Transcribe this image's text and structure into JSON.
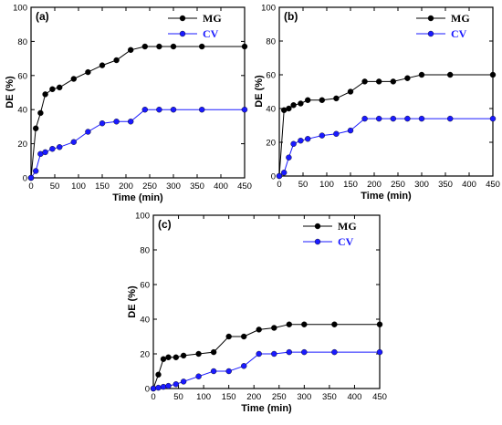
{
  "colors": {
    "MG": "#000000",
    "CV": "#1a1aff"
  },
  "chart_data": [
    {
      "type": "line",
      "panel_label": "(a)",
      "xlabel": "Time (min)",
      "ylabel": "DE (%)",
      "xlim": [
        0,
        450
      ],
      "ylim": [
        0,
        100
      ],
      "xticks": [
        0,
        50,
        100,
        150,
        200,
        250,
        300,
        350,
        400,
        450
      ],
      "yticks": [
        0,
        20,
        40,
        60,
        80,
        100
      ],
      "legend_position": "top-right",
      "series": [
        {
          "name": "MG",
          "points": [
            [
              0,
              0
            ],
            [
              10,
              29
            ],
            [
              20,
              38
            ],
            [
              30,
              49
            ],
            [
              45,
              52
            ],
            [
              60,
              53
            ],
            [
              90,
              58
            ],
            [
              120,
              62
            ],
            [
              150,
              66
            ],
            [
              180,
              69
            ],
            [
              210,
              75
            ],
            [
              240,
              77
            ],
            [
              270,
              77
            ],
            [
              300,
              77
            ],
            [
              360,
              77
            ],
            [
              450,
              77
            ]
          ]
        },
        {
          "name": "CV",
          "points": [
            [
              0,
              0
            ],
            [
              10,
              4
            ],
            [
              20,
              14
            ],
            [
              30,
              15
            ],
            [
              45,
              17
            ],
            [
              60,
              18
            ],
            [
              90,
              21
            ],
            [
              120,
              27
            ],
            [
              150,
              32
            ],
            [
              180,
              33
            ],
            [
              210,
              33
            ],
            [
              240,
              40
            ],
            [
              270,
              40
            ],
            [
              300,
              40
            ],
            [
              360,
              40
            ],
            [
              450,
              40
            ]
          ]
        }
      ]
    },
    {
      "type": "line",
      "panel_label": "(b)",
      "xlabel": "Time (min)",
      "ylabel": "DE (%)",
      "xlim": [
        0,
        450
      ],
      "ylim": [
        0,
        100
      ],
      "xticks": [
        0,
        50,
        100,
        150,
        200,
        250,
        300,
        350,
        400,
        450
      ],
      "yticks": [
        0,
        20,
        40,
        60,
        80,
        100
      ],
      "legend_position": "top-right",
      "series": [
        {
          "name": "MG",
          "points": [
            [
              0,
              0
            ],
            [
              10,
              39
            ],
            [
              20,
              40
            ],
            [
              30,
              42
            ],
            [
              45,
              43
            ],
            [
              60,
              45
            ],
            [
              90,
              45
            ],
            [
              120,
              46
            ],
            [
              150,
              50
            ],
            [
              180,
              56
            ],
            [
              210,
              56
            ],
            [
              240,
              56
            ],
            [
              270,
              58
            ],
            [
              300,
              60
            ],
            [
              360,
              60
            ],
            [
              450,
              60
            ]
          ]
        },
        {
          "name": "CV",
          "points": [
            [
              0,
              0
            ],
            [
              10,
              2
            ],
            [
              20,
              11
            ],
            [
              30,
              19
            ],
            [
              45,
              21
            ],
            [
              60,
              22
            ],
            [
              90,
              24
            ],
            [
              120,
              25
            ],
            [
              150,
              27
            ],
            [
              180,
              34
            ],
            [
              210,
              34
            ],
            [
              240,
              34
            ],
            [
              270,
              34
            ],
            [
              300,
              34
            ],
            [
              360,
              34
            ],
            [
              450,
              34
            ]
          ]
        }
      ]
    },
    {
      "type": "line",
      "panel_label": "(c)",
      "xlabel": "Time (min)",
      "ylabel": "DE (%)",
      "xlim": [
        0,
        450
      ],
      "ylim": [
        0,
        100
      ],
      "xticks": [
        0,
        50,
        100,
        150,
        200,
        250,
        300,
        350,
        400,
        450
      ],
      "yticks": [
        0,
        20,
        40,
        60,
        80,
        100
      ],
      "legend_position": "top-right",
      "series": [
        {
          "name": "MG",
          "points": [
            [
              0,
              0
            ],
            [
              10,
              8
            ],
            [
              20,
              17
            ],
            [
              30,
              18
            ],
            [
              45,
              18
            ],
            [
              60,
              19
            ],
            [
              90,
              20
            ],
            [
              120,
              21
            ],
            [
              150,
              30
            ],
            [
              180,
              30
            ],
            [
              210,
              34
            ],
            [
              240,
              35
            ],
            [
              270,
              37
            ],
            [
              300,
              37
            ],
            [
              360,
              37
            ],
            [
              450,
              37
            ]
          ]
        },
        {
          "name": "CV",
          "points": [
            [
              0,
              0
            ],
            [
              10,
              0.5
            ],
            [
              20,
              1
            ],
            [
              30,
              1.5
            ],
            [
              45,
              2.5
            ],
            [
              60,
              4
            ],
            [
              90,
              7
            ],
            [
              120,
              10
            ],
            [
              150,
              10
            ],
            [
              180,
              13
            ],
            [
              210,
              20
            ],
            [
              240,
              20
            ],
            [
              270,
              21
            ],
            [
              300,
              21
            ],
            [
              360,
              21
            ],
            [
              450,
              21
            ]
          ]
        }
      ]
    }
  ]
}
